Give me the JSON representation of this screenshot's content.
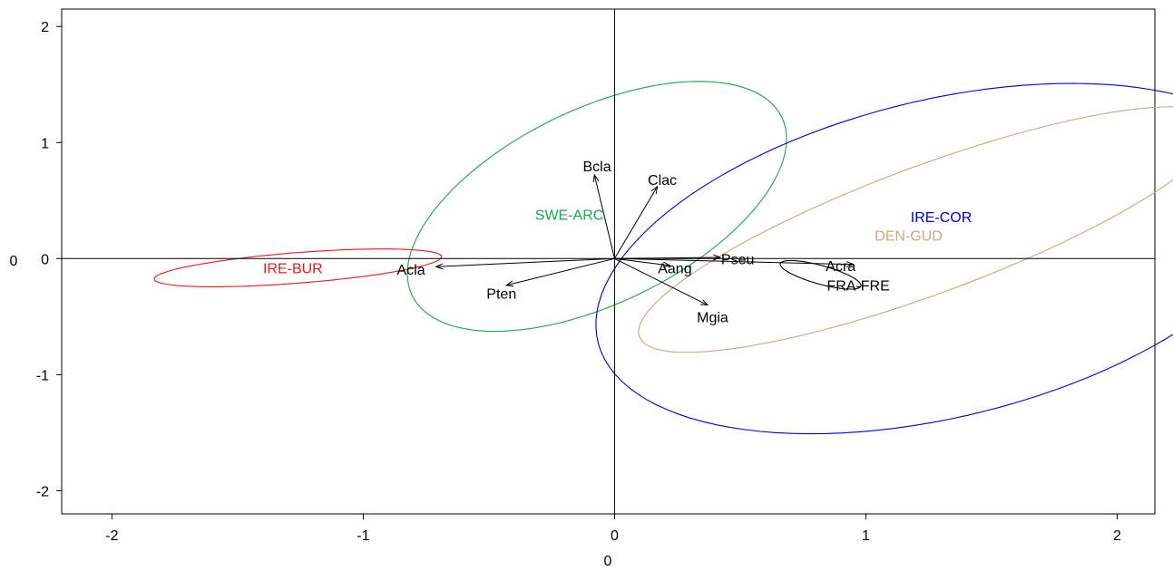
{
  "chart_data": {
    "type": "scatter",
    "title": "",
    "xlabel": "0",
    "ylabel": "0",
    "xlim": [
      -2.2,
      2.15
    ],
    "ylim": [
      -2.2,
      2.15
    ],
    "x_ticks": [
      -2,
      -1,
      0,
      1,
      2
    ],
    "y_ticks": [
      -2,
      -1,
      0,
      1,
      2
    ],
    "x_tick_labels": [
      "-2",
      "-1",
      "0",
      "1",
      "2"
    ],
    "y_tick_labels": [
      "-2",
      "-1",
      "0",
      "1",
      "2"
    ],
    "grid": false,
    "zero_lines": true,
    "arrows": [
      {
        "label": "Bcla",
        "x": -0.08,
        "y": 0.72,
        "label_x": -0.07,
        "label_y": 0.8
      },
      {
        "label": "Clac",
        "x": 0.17,
        "y": 0.62,
        "label_x": 0.19,
        "label_y": 0.68
      },
      {
        "label": "Acla",
        "x": -0.71,
        "y": -0.07,
        "label_x": -0.81,
        "label_y": -0.09
      },
      {
        "label": "Pten",
        "x": -0.43,
        "y": -0.23,
        "label_x": -0.45,
        "label_y": -0.3
      },
      {
        "label": "Aang",
        "x": 0.22,
        "y": -0.06,
        "label_x": 0.24,
        "label_y": -0.08
      },
      {
        "label": "Pseu",
        "x": 0.42,
        "y": 0.01,
        "label_x": 0.49,
        "label_y": 0.0
      },
      {
        "label": "Mgia",
        "x": 0.37,
        "y": -0.4,
        "label_x": 0.39,
        "label_y": -0.5
      },
      {
        "label": "Acra",
        "x": 0.95,
        "y": -0.05,
        "label_x": 0.9,
        "label_y": -0.06
      }
    ],
    "groups": [
      {
        "name": "IRE-BUR",
        "color": "#e41a1c",
        "label_x": -1.28,
        "label_y": -0.08,
        "ellipse": {
          "cx": -1.26,
          "cy": -0.08,
          "a": 0.58,
          "b": 0.13,
          "angle_deg": 10
        }
      },
      {
        "name": "SWE-ARC",
        "color": "#1aa54f",
        "label_x": -0.18,
        "label_y": 0.38,
        "ellipse": {
          "cx": -0.07,
          "cy": 0.45,
          "a": 1.18,
          "b": 0.58,
          "angle_deg": 62
        }
      },
      {
        "name": "IRE-COR",
        "color": "#0000cc",
        "label_x": 1.3,
        "label_y": 0.36,
        "ellipse": {
          "cx": 1.3,
          "cy": 0.0,
          "a": 1.7,
          "b": 1.13,
          "angle_deg": 52
        }
      },
      {
        "name": "DEN-GUD",
        "color": "#c8a882",
        "label_x": 1.17,
        "label_y": 0.2,
        "ellipse": {
          "cx": 1.25,
          "cy": 0.25,
          "a": 1.5,
          "b": 0.45,
          "angle_deg": 42
        }
      },
      {
        "name": "FRA-FRE",
        "color": "#000000",
        "label_x": 0.97,
        "label_y": -0.23,
        "ellipse": {
          "cx": 0.82,
          "cy": -0.14,
          "a": 0.19,
          "b": 0.07,
          "angle_deg": -35
        }
      }
    ]
  }
}
